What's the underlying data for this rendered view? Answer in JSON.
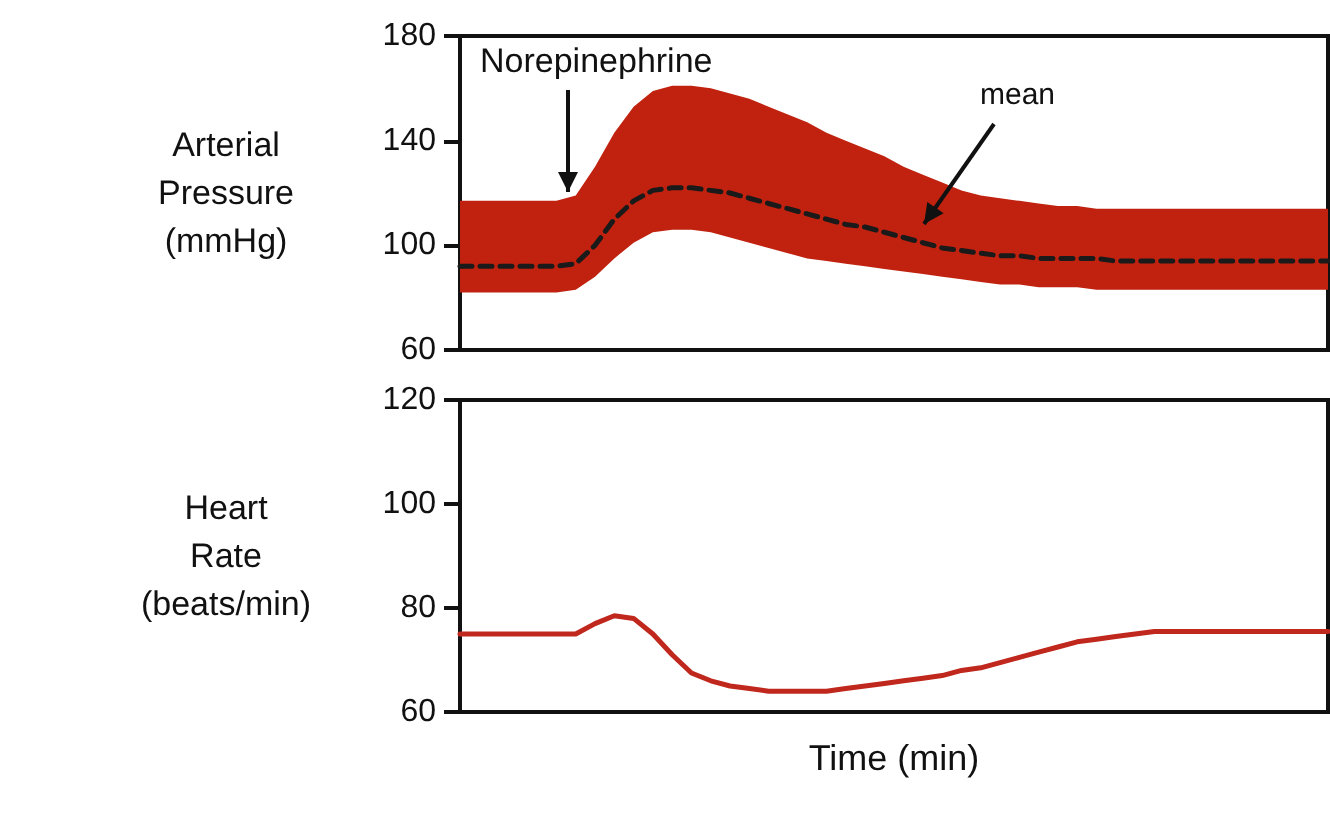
{
  "chart_data": [
    {
      "type": "line",
      "ylabel": "Arterial Pressure (mmHg)",
      "annotations": [
        "Norepinephrine"
      ],
      "categories": [
        null,
        null,
        null,
        null,
        null,
        null,
        null,
        null,
        null,
        null,
        null,
        null,
        null,
        null,
        null,
        null,
        null,
        null,
        null,
        null,
        null,
        null,
        null,
        null,
        null,
        null,
        null,
        null,
        null,
        null,
        null,
        null,
        null,
        null,
        null,
        null,
        null,
        null,
        null,
        null,
        null,
        null,
        null,
        null,
        null,
        null
      ],
      "series": [
        {
          "name": "mean",
          "color": "#1a1a1a",
          "line_style": "dashed",
          "values": [
            92,
            92,
            92,
            92,
            92,
            92,
            93,
            100,
            110,
            117,
            121,
            122,
            122,
            121,
            120,
            118,
            116,
            114,
            112,
            110,
            108,
            107,
            105,
            103,
            101,
            99,
            98,
            97,
            96,
            96,
            95,
            95,
            95,
            95,
            94,
            94,
            94,
            94,
            94,
            94,
            94,
            94,
            94,
            94,
            94,
            94
          ],
          "upper": [
            117,
            117,
            117,
            117,
            117,
            117,
            119,
            130,
            143,
            153,
            159,
            161,
            161,
            160,
            158,
            156,
            153,
            150,
            147,
            143,
            140,
            137,
            134,
            130,
            127,
            124,
            121,
            119,
            118,
            117,
            116,
            115,
            115,
            114,
            114,
            114,
            114,
            114,
            114,
            114,
            114,
            114,
            114,
            114,
            114,
            114
          ],
          "lower": [
            82,
            82,
            82,
            82,
            82,
            82,
            83,
            88,
            95,
            101,
            105,
            106,
            106,
            105,
            103,
            101,
            99,
            97,
            95,
            94,
            93,
            92,
            91,
            90,
            89,
            88,
            87,
            86,
            85,
            85,
            84,
            84,
            84,
            83,
            83,
            83,
            83,
            83,
            83,
            83,
            83,
            83,
            83,
            83,
            83,
            83
          ]
        }
      ],
      "ylim": [
        60,
        180
      ],
      "yticks": [
        60,
        100,
        140,
        180
      ],
      "grid": false,
      "legend": false,
      "marker": "none",
      "tick_labels": "y"
    },
    {
      "type": "line",
      "ylabel": "Heart Rate (beats/min)",
      "xlabel": "Time (min)",
      "categories": [
        null,
        null,
        null,
        null,
        null,
        null,
        null,
        null,
        null,
        null,
        null,
        null,
        null,
        null,
        null,
        null,
        null,
        null,
        null,
        null,
        null,
        null,
        null,
        null,
        null,
        null,
        null,
        null,
        null,
        null,
        null,
        null,
        null,
        null,
        null,
        null,
        null,
        null,
        null,
        null,
        null,
        null,
        null,
        null,
        null,
        null
      ],
      "series": [
        {
          "color": "#c0281e",
          "values": [
            75,
            75,
            75,
            75,
            75,
            75,
            75,
            77,
            78.5,
            78,
            75,
            71,
            67.5,
            66,
            65,
            64.5,
            64,
            64,
            64,
            64,
            64.5,
            65,
            65.5,
            66,
            66.5,
            67,
            68,
            68.5,
            69.5,
            70.5,
            71.5,
            72.5,
            73.5,
            74,
            74.5,
            75,
            75.5,
            75.5,
            75.5,
            75.5,
            75.5,
            75.5,
            75.5,
            75.5,
            75.5,
            75.5
          ]
        }
      ],
      "ylim": [
        60,
        120
      ],
      "yticks": [
        60,
        80,
        100,
        120
      ],
      "grid": false,
      "legend": false,
      "marker": "none",
      "tick_labels": "y"
    }
  ]
}
